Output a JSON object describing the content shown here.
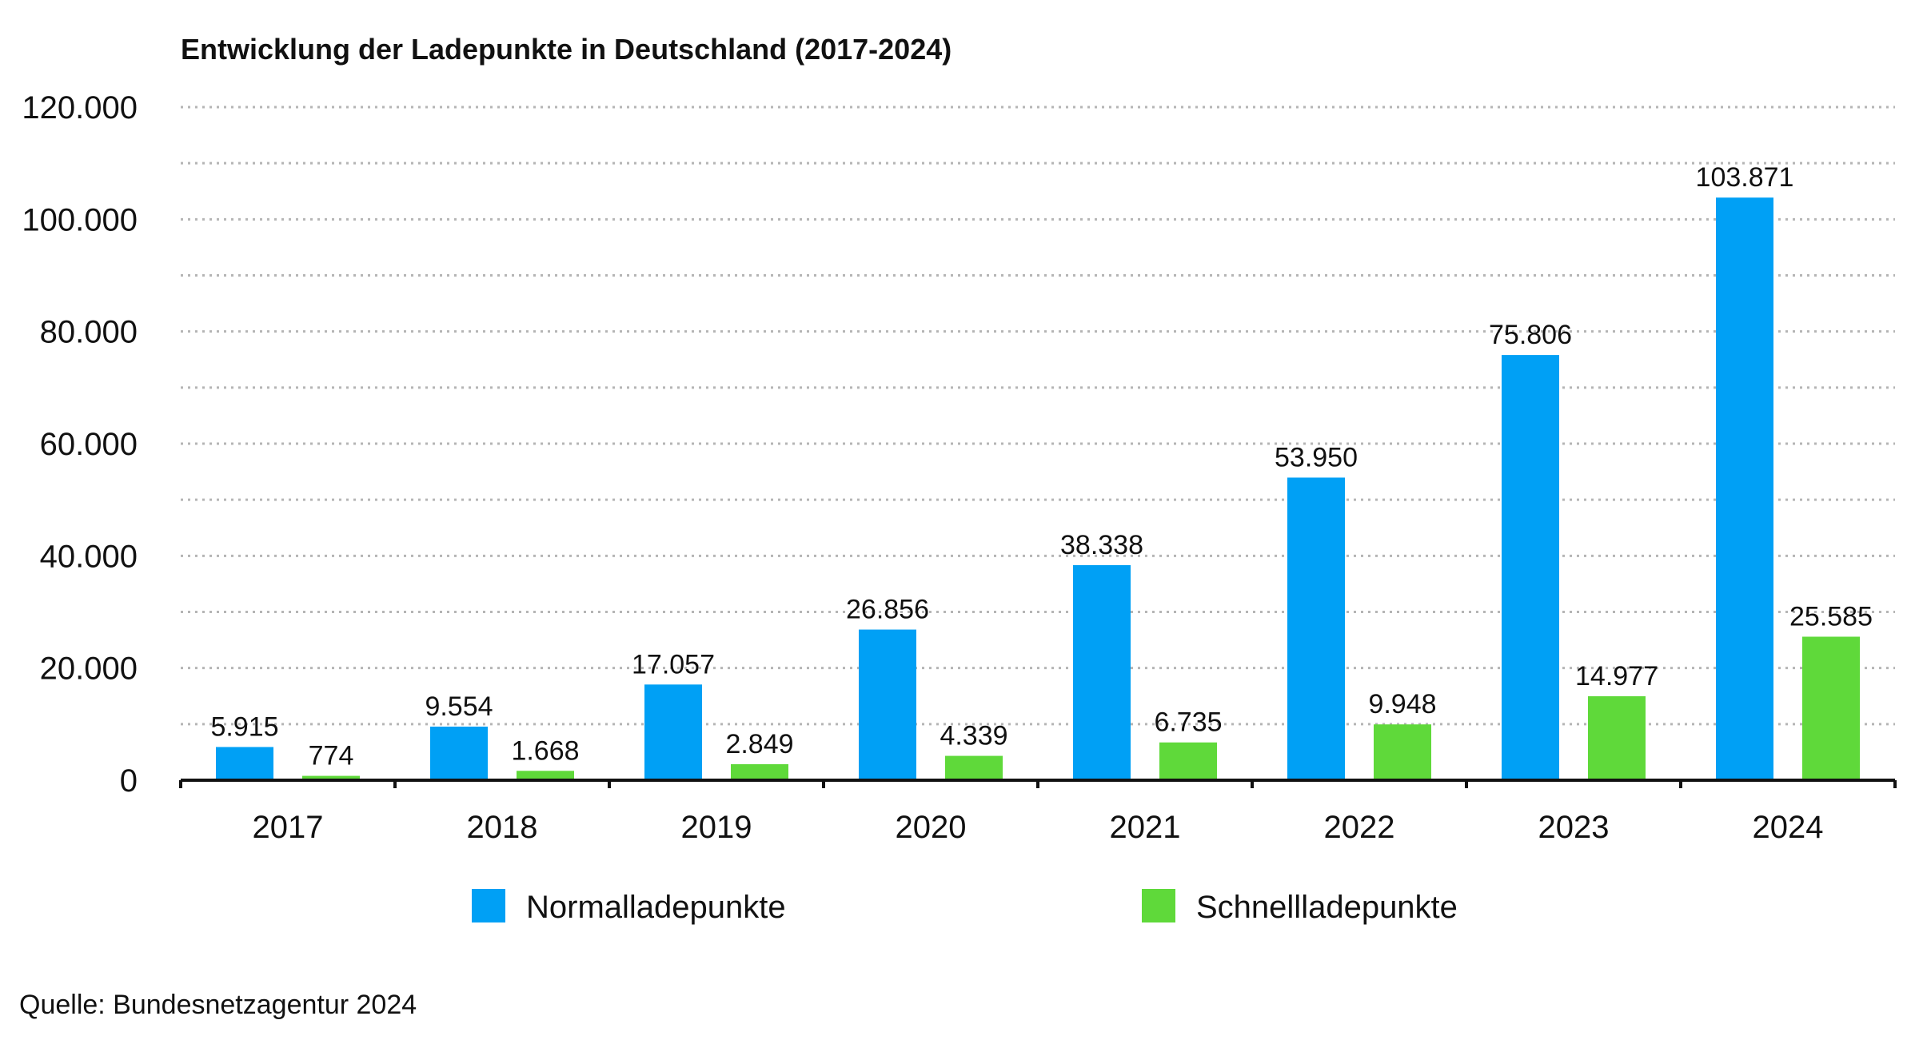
{
  "chart_data": {
    "type": "bar",
    "title": "Entwicklung der Ladepunkte in Deutschland (2017-2024)",
    "categories": [
      "2017",
      "2018",
      "2019",
      "2020",
      "2021",
      "2022",
      "2023",
      "2024"
    ],
    "series": [
      {
        "name": "Normalladepunkte",
        "color": "#00A0F5",
        "values": [
          5915,
          9554,
          17057,
          26856,
          38338,
          53950,
          75806,
          103871
        ],
        "labels": [
          "5.915",
          "9.554",
          "17.057",
          "26.856",
          "38.338",
          "53.950",
          "75.806",
          "103.871"
        ]
      },
      {
        "name": "Schnellladepunkte",
        "color": "#5FD93A",
        "values": [
          774,
          1668,
          2849,
          4339,
          6735,
          9948,
          14977,
          25585
        ],
        "labels": [
          "774",
          "1.668",
          "2.849",
          "4.339",
          "6.735",
          "9.948",
          "14.977",
          "25.585"
        ]
      }
    ],
    "ylim": [
      0,
      120000
    ],
    "yticks": [
      0,
      20000,
      40000,
      60000,
      80000,
      100000,
      120000
    ],
    "ytick_labels": [
      "0",
      "20.000",
      "40.000",
      "60.000",
      "80.000",
      "100.000",
      "120.000"
    ],
    "grid": true,
    "legend_position": "bottom",
    "xlabel": "",
    "ylabel": ""
  },
  "source": "Quelle: Bundesnetzagentur 2024"
}
